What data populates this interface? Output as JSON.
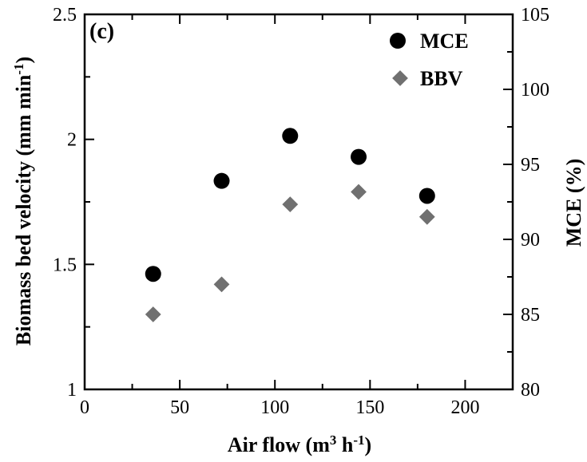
{
  "chart_data": {
    "type": "scatter",
    "panel_label": "(c)",
    "x": [
      36,
      72,
      108,
      144,
      180
    ],
    "xlabel": "Air flow (m",
    "xlabel_sup1": "3",
    "xlabel_mid": " h",
    "xlabel_sup2": "-1",
    "xlabel_end": ")",
    "ylabel": "Biomass bed velocity (mm min",
    "ylabel_sup": "-1",
    "ylabel_end": ")",
    "y2label": "MCE (%)",
    "xlim": [
      0,
      225
    ],
    "ylim": [
      1,
      2.5
    ],
    "y2lim": [
      80,
      105
    ],
    "x_ticks": [
      0,
      50,
      100,
      150,
      200
    ],
    "x_tick_labels": [
      "0",
      "50",
      "100",
      "150",
      "200"
    ],
    "y_ticks": [
      1,
      1.5,
      2,
      2.5
    ],
    "y_tick_labels": [
      "1",
      "1.5",
      "2",
      "2.5"
    ],
    "y2_ticks": [
      80,
      85,
      90,
      95,
      100,
      105
    ],
    "y2_tick_labels": [
      "80",
      "85",
      "90",
      "95",
      "100",
      "105"
    ],
    "series": [
      {
        "name": "MCE",
        "axis": "right",
        "marker": "circle",
        "color": "#000000",
        "values": [
          87.7,
          93.9,
          96.9,
          95.5,
          92.9
        ]
      },
      {
        "name": "BBV",
        "axis": "left",
        "marker": "diamond",
        "color": "#707070",
        "values": [
          1.3,
          1.42,
          1.74,
          1.79,
          1.69
        ]
      }
    ],
    "legend_position": "top-right",
    "grid": false
  }
}
